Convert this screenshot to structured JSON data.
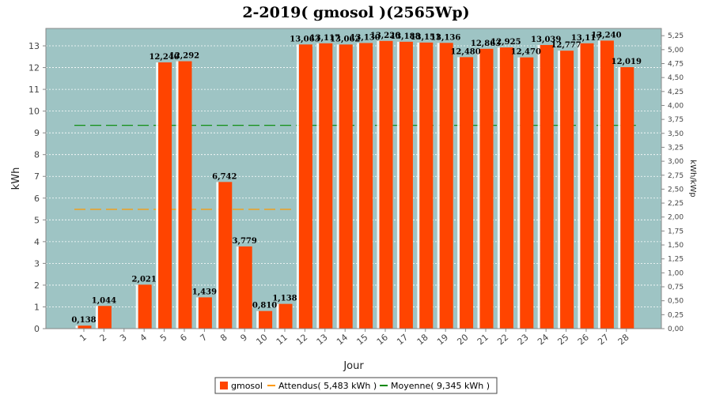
{
  "chart_data": {
    "type": "bar",
    "title": "2-2019( gmosol )(2565Wp)",
    "xlabel": "Jour",
    "ylabel": "kWh",
    "ylabel_right": "kWh/kWp",
    "ylim": [
      0,
      13.8
    ],
    "yticks": [
      "0",
      "1",
      "2",
      "3",
      "4",
      "5",
      "6",
      "7",
      "8",
      "9",
      "10",
      "11",
      "12",
      "13"
    ],
    "ylim_right": [
      0,
      5.38
    ],
    "yticks_right": [
      "0,00",
      "0,25",
      "0,50",
      "0,75",
      "1,00",
      "1,25",
      "1,50",
      "1,75",
      "2,00",
      "2,25",
      "2,50",
      "2,75",
      "3,00",
      "3,25",
      "3,50",
      "3,75",
      "4,00",
      "4,25",
      "4,50",
      "4,75",
      "5,00",
      "5,25"
    ],
    "categories": [
      "1",
      "2",
      "3",
      "4",
      "5",
      "6",
      "7",
      "8",
      "9",
      "10",
      "11",
      "12",
      "13",
      "14",
      "15",
      "16",
      "17",
      "18",
      "19",
      "20",
      "21",
      "22",
      "23",
      "24",
      "25",
      "26",
      "27",
      "28"
    ],
    "series": [
      {
        "name": "gmosol",
        "color": "#ff4400",
        "values": [
          0.138,
          1.044,
          0,
          2.021,
          12.24,
          12.292,
          1.439,
          6.742,
          3.779,
          0.81,
          1.138,
          13.063,
          13.117,
          13.062,
          13.13,
          13.226,
          13.188,
          13.151,
          13.136,
          12.48,
          12.863,
          12.925,
          12.47,
          13.039,
          12.777,
          13.117,
          13.24,
          12.019
        ],
        "labels": [
          "0,138",
          "1,044",
          "",
          "2,021",
          "12,240",
          "12,292",
          "1,439",
          "6,742",
          "3,779",
          "0,810",
          "1,138",
          "13,063",
          "13,117",
          "13,062",
          "13,130",
          "13,226",
          "13,188",
          "13,151",
          "13,136",
          "12,480",
          "12,863",
          "12,925",
          "12,470",
          "13,039",
          "12,777",
          "13,117",
          "13,240",
          "12,019"
        ]
      }
    ],
    "reference_lines": [
      {
        "name": "Attendus",
        "legend": "Attendus( 5,483 kWh )",
        "color": "#ff9900",
        "value": 5.483,
        "x_range": [
          "1",
          "11"
        ]
      },
      {
        "name": "Moyenne",
        "legend": "Moyenne( 9,345 kWh )",
        "color": "#008800",
        "value": 9.345,
        "x_range": [
          "1",
          "28"
        ]
      }
    ],
    "legend": {
      "position": "bottom-center",
      "items": [
        "gmosol",
        "Attendus( 5,483 kWh )",
        "Moyenne( 9,345 kWh )"
      ]
    },
    "colors": {
      "plot_background": "#9ec4c4",
      "gridline": "#ffffff"
    },
    "grid": true
  }
}
